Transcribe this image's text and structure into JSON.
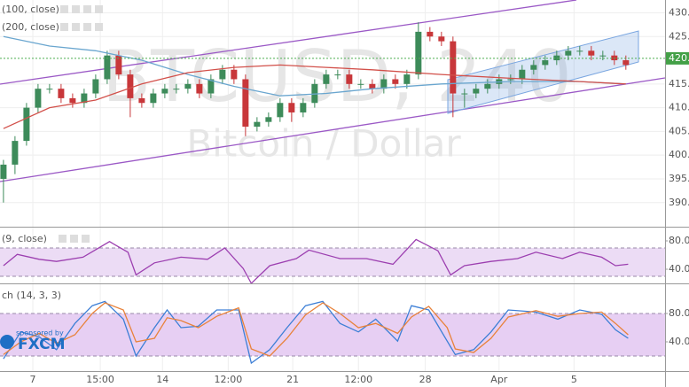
{
  "chart_data": [
    {
      "type": "candlestick",
      "title": "BTCUSD, 240",
      "subtitle": "Bitcoin / Dollar",
      "x": [
        0,
        1,
        2,
        3,
        4,
        5,
        6,
        7,
        8,
        9,
        10,
        11,
        12,
        13,
        14,
        15,
        16,
        17,
        18,
        19,
        20,
        21,
        22,
        23,
        24,
        25,
        26,
        27,
        28,
        29,
        30,
        31,
        32,
        33,
        34,
        35,
        36,
        37,
        38,
        39,
        40,
        41,
        42,
        43,
        44,
        45,
        46,
        47,
        48,
        49,
        50,
        51,
        52,
        53,
        54
      ],
      "open": [
        395,
        398,
        403,
        410,
        414,
        414,
        412,
        411,
        413,
        416,
        421,
        417,
        412,
        411,
        413,
        414,
        414,
        415,
        413,
        416,
        418,
        416,
        406,
        407,
        408,
        411,
        409,
        411,
        415,
        417,
        417,
        415,
        415,
        414,
        416,
        415,
        417,
        426,
        425,
        424,
        413,
        413,
        414,
        415,
        416,
        416,
        418,
        419,
        420,
        421,
        422,
        422,
        421,
        421,
        420
      ],
      "high": [
        399,
        404,
        411,
        415,
        415,
        415,
        413,
        414,
        417,
        422,
        422,
        418,
        413,
        414,
        415,
        415,
        416,
        416,
        417,
        419,
        419,
        417,
        408,
        409,
        412,
        412,
        412,
        416,
        418,
        418,
        418,
        416,
        416,
        417,
        417,
        418,
        428,
        427,
        426,
        425,
        414,
        415,
        416,
        417,
        417,
        419,
        420,
        421,
        422,
        423,
        423,
        423,
        422,
        422,
        421
      ],
      "low": [
        390,
        396,
        402,
        409,
        413,
        411,
        410,
        410,
        412,
        415,
        416,
        408,
        410,
        410,
        412,
        413,
        413,
        412,
        412,
        415,
        415,
        404,
        405,
        406,
        407,
        407,
        408,
        410,
        414,
        416,
        414,
        414,
        413,
        413,
        414,
        414,
        416,
        424,
        423,
        408,
        410,
        412,
        413,
        414,
        415,
        415,
        417,
        418,
        419,
        420,
        421,
        420,
        420,
        419,
        418
      ],
      "close": [
        398,
        403,
        410,
        414,
        414,
        412,
        411,
        413,
        416,
        421,
        417,
        412,
        411,
        413,
        414,
        414,
        415,
        413,
        416,
        418,
        416,
        406,
        407,
        408,
        411,
        409,
        411,
        415,
        417,
        417,
        415,
        415,
        414,
        416,
        415,
        417,
        426,
        425,
        424,
        413,
        413,
        414,
        415,
        416,
        416,
        418,
        419,
        420,
        421,
        422,
        422,
        421,
        421,
        420,
        419
      ],
      "up_color": "#3d8b5a",
      "down_color": "#c8373a",
      "series": [
        {
          "name": "(100, close)",
          "color": "#6aa6cf",
          "x": [
            0,
            4,
            8,
            12,
            16,
            20,
            24,
            28,
            32,
            38,
            44,
            50,
            54
          ],
          "values": [
            425,
            423,
            422,
            420,
            417,
            414.5,
            412.5,
            413,
            414,
            415,
            415.5,
            415.5,
            415
          ]
        },
        {
          "name": "(200, close)",
          "color": "#d2504a",
          "x": [
            0,
            4,
            8,
            12,
            16,
            20,
            24,
            28,
            32,
            38,
            44,
            50,
            54
          ],
          "values": [
            405.6,
            410,
            411.6,
            415,
            417.4,
            418.5,
            419,
            418.5,
            418,
            417,
            416.2,
            415.5,
            415
          ]
        }
      ],
      "last_price": {
        "value": 420.4,
        "label": "420."
      },
      "xlim": [
        -0.3,
        57.4
      ],
      "ylim": [
        385.1,
        432.7
      ],
      "xticks": [
        {
          "value": 2.55,
          "label": "7"
        },
        {
          "value": 8.4,
          "label": "15:00"
        },
        {
          "value": 13.8,
          "label": "14"
        },
        {
          "value": 19.5,
          "label": "12:00"
        },
        {
          "value": 25.1,
          "label": "21"
        },
        {
          "value": 30.8,
          "label": "12:00"
        },
        {
          "value": 36.6,
          "label": "28"
        },
        {
          "value": 43.0,
          "label": "Apr"
        },
        {
          "value": 49.5,
          "label": "5"
        }
      ],
      "yticks": [
        {
          "value": 430,
          "label": "430."
        },
        {
          "value": 425,
          "label": "425."
        },
        {
          "value": 415,
          "label": "415."
        },
        {
          "value": 410,
          "label": "410."
        },
        {
          "value": 405,
          "label": "405."
        },
        {
          "value": 400,
          "label": "400."
        },
        {
          "value": 395,
          "label": "395."
        },
        {
          "value": 390,
          "label": "390."
        }
      ],
      "grid": true
    },
    {
      "type": "line",
      "title": "(9, close)",
      "series": [
        {
          "color": "#9c3fb0",
          "x": [
            0,
            1.2,
            3.1,
            4.6,
            6.9,
            9.2,
            10.8,
            11.5,
            13.1,
            15.4,
            17.7,
            19.2,
            20.8,
            21.5,
            23.1,
            25.4,
            26.5,
            29.2,
            31.5,
            33.8,
            35.8,
            37.7,
            38.8,
            40,
            42.3,
            44.6,
            46.2,
            48.5,
            50,
            51.9,
            53.1,
            54.2
          ],
          "values": [
            45,
            61,
            54,
            51,
            57,
            79,
            64,
            32,
            49,
            57,
            54,
            70,
            41,
            20,
            45,
            55,
            67,
            55,
            55,
            47,
            82,
            66,
            32,
            45,
            51,
            55,
            64,
            55,
            64,
            57,
            45,
            47
          ]
        }
      ],
      "band": [
        30,
        70
      ],
      "band_color": "#ecdcf5",
      "xlim": [
        -0.3,
        57.4
      ],
      "ylim": [
        22.5,
        97.5
      ],
      "yticks": [
        {
          "value": 80,
          "label": "80.0"
        },
        {
          "value": 40,
          "label": "40.0"
        }
      ]
    },
    {
      "type": "line",
      "title": "ch (14, 3, 3)",
      "sponsor": {
        "label": "sponsored by",
        "name": "FXCM"
      },
      "series": [
        {
          "color": "#3d7fd6",
          "x": [
            0,
            1.5,
            3.1,
            4.6,
            6.2,
            7.7,
            8.8,
            10.4,
            11.5,
            13.1,
            14.2,
            15.4,
            16.9,
            18.5,
            20.4,
            21.5,
            23.1,
            24.6,
            26.2,
            27.7,
            29.2,
            30.8,
            32.3,
            34.2,
            35.4,
            36.9,
            38.5,
            39.2,
            40.8,
            42.3,
            43.8,
            46.2,
            48.1,
            50,
            51.9,
            53.1,
            54.2
          ],
          "values": [
            16,
            54,
            47,
            29,
            66,
            91,
            97,
            72,
            20,
            60,
            85,
            60,
            62,
            85,
            85,
            10,
            29,
            60,
            91,
            97,
            66,
            54,
            72,
            41,
            91,
            85,
            41,
            22,
            29,
            54,
            85,
            82,
            72,
            85,
            79,
            57,
            45
          ]
        },
        {
          "color": "#e8823a",
          "x": [
            0,
            1.5,
            3.1,
            4.6,
            6.2,
            7.7,
            8.8,
            10.4,
            11.5,
            13.1,
            14.2,
            15.4,
            16.9,
            18.5,
            20.4,
            21.5,
            23.1,
            24.6,
            26.2,
            27.7,
            29.2,
            30.8,
            32.3,
            34.2,
            35.4,
            36.9,
            38.5,
            39.2,
            40.8,
            42.3,
            43.8,
            46.2,
            48.1,
            50,
            51.9,
            53.1,
            54.2
          ],
          "values": [
            22,
            40,
            52,
            38,
            50,
            80,
            95,
            85,
            40,
            45,
            74,
            70,
            60,
            76,
            88,
            30,
            20,
            45,
            78,
            95,
            80,
            60,
            66,
            52,
            75,
            90,
            60,
            30,
            25,
            45,
            75,
            84,
            76,
            80,
            82,
            66,
            50
          ]
        }
      ],
      "band": [
        20,
        80
      ],
      "band_color": "#e7cff3",
      "xlim": [
        -0.3,
        57.4
      ],
      "ylim": [
        0,
        120
      ],
      "yticks": [
        {
          "value": 80,
          "label": "80.0"
        },
        {
          "value": 40,
          "label": "40.0"
        }
      ]
    }
  ]
}
